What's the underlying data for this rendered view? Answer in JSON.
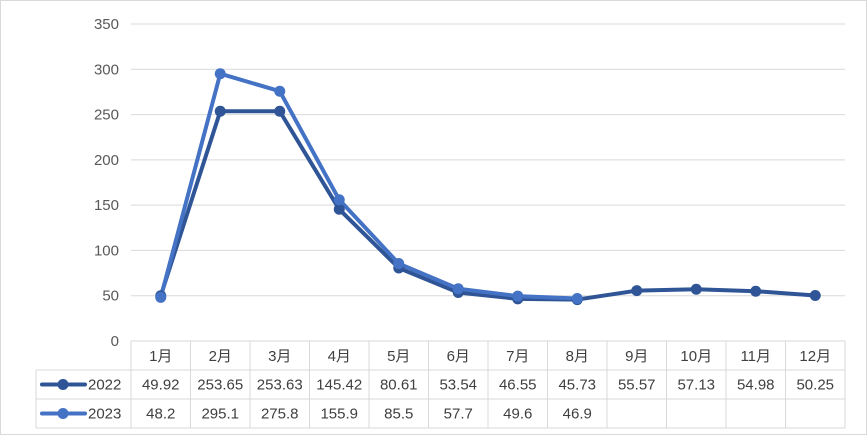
{
  "chart_data": {
    "type": "line",
    "title": "",
    "xlabel": "",
    "ylabel": "",
    "ylim": [
      0,
      350
    ],
    "yticks": [
      0,
      50,
      100,
      150,
      200,
      250,
      300,
      350
    ],
    "grid": true,
    "legend": "data-table",
    "categories": [
      "1月",
      "2月",
      "3月",
      "4月",
      "5月",
      "6月",
      "7月",
      "8月",
      "9月",
      "10月",
      "11月",
      "12月"
    ],
    "series": [
      {
        "name": "2022",
        "color": "#2f5597",
        "values": [
          49.92,
          253.65,
          253.63,
          145.42,
          80.61,
          53.54,
          46.55,
          45.73,
          55.57,
          57.13,
          54.98,
          50.25
        ],
        "labels": [
          "49.92",
          "253.65",
          "253.63",
          "145.42",
          "80.61",
          "53.54",
          "46.55",
          "45.73",
          "55.57",
          "57.13",
          "54.98",
          "50.25"
        ]
      },
      {
        "name": "2023",
        "color": "#4472c4",
        "values": [
          48.2,
          295.1,
          275.8,
          155.9,
          85.5,
          57.7,
          49.6,
          46.9,
          null,
          null,
          null,
          null
        ],
        "labels": [
          "48.2",
          "295.1",
          "275.8",
          "155.9",
          "85.5",
          "57.7",
          "49.6",
          "46.9",
          "",
          "",
          "",
          ""
        ]
      }
    ]
  }
}
